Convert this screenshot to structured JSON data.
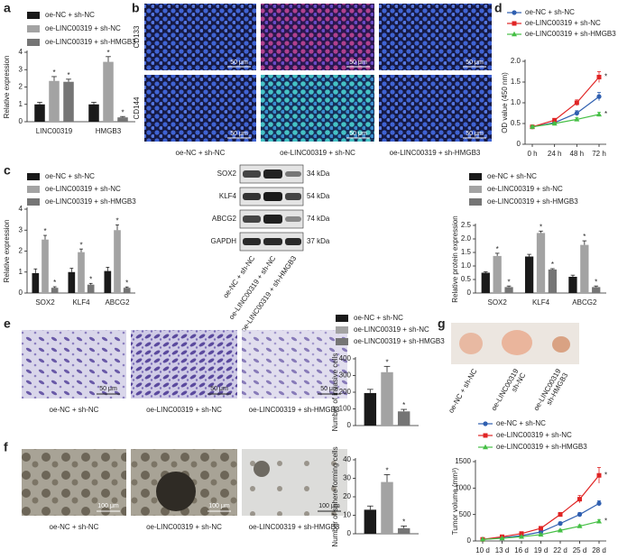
{
  "panel_labels": [
    "a",
    "b",
    "c",
    "d",
    "e",
    "f",
    "g"
  ],
  "chart_data": [
    {
      "type": "bar",
      "y_label": "Relative expression",
      "categories": [
        "LINC00319",
        "HMGB3"
      ],
      "ylim": [
        0,
        4
      ],
      "yticks": [
        0,
        1,
        2,
        3,
        4
      ],
      "series": [
        {
          "name": "oe-NC + sh-NC",
          "color": "#1a1a1a",
          "values": [
            1.0,
            1.0
          ],
          "errors": [
            0.12,
            0.12
          ]
        },
        {
          "name": "oe-LINC00319 + sh-NC",
          "color": "#a3a3a3",
          "values": [
            2.35,
            3.45
          ],
          "errors": [
            0.25,
            0.3
          ],
          "significance": "*"
        },
        {
          "name": "oe-LINC00319 + sh-HMGB3",
          "color": "#757575",
          "values": [
            2.3,
            0.25
          ],
          "errors": [
            0.15,
            0.05
          ],
          "significance": "*"
        }
      ]
    },
    {
      "type": "line",
      "y_label": "OD value (450 nm)",
      "categories": [
        "0 h",
        "24 h",
        "48 h",
        "72 h"
      ],
      "ylim": [
        0,
        2
      ],
      "yticks": [
        0,
        0.5,
        {
          "value": 1,
          "label": "1.0"
        },
        1.5,
        {
          "value": 2,
          "label": "2.0"
        }
      ],
      "series": [
        {
          "name": "oe-NC + sh-NC",
          "color": "#2f5fb0",
          "marker": "circle",
          "values": [
            0.42,
            0.52,
            0.75,
            1.15
          ],
          "errors": [
            0.03,
            0.03,
            0.06,
            0.1
          ]
        },
        {
          "name": "oe-LINC00319 + sh-NC",
          "color": "#e02424",
          "marker": "square",
          "values": [
            0.42,
            0.58,
            1.0,
            1.62
          ],
          "errors": [
            0.03,
            0.03,
            0.07,
            0.13
          ],
          "significance": "*"
        },
        {
          "name": "oe-LINC00319 + sh-HMGB3",
          "color": "#45bf45",
          "marker": "triangle",
          "values": [
            0.42,
            0.5,
            0.6,
            0.72
          ],
          "errors": [
            0.03,
            0.03,
            0.04,
            0.05
          ],
          "significance": "*"
        }
      ]
    },
    {
      "type": "bar",
      "y_label": "Relative expression",
      "categories": [
        "SOX2",
        "KLF4",
        "ABCG2"
      ],
      "ylim": [
        0,
        4
      ],
      "yticks": [
        0,
        1,
        2,
        3,
        4
      ],
      "series": [
        {
          "name": "oe-NC + sh-NC",
          "color": "#1a1a1a",
          "values": [
            0.95,
            1.0,
            1.05
          ],
          "errors": [
            0.2,
            0.18,
            0.18
          ]
        },
        {
          "name": "oe-LINC00319 + sh-NC",
          "color": "#a3a3a3",
          "values": [
            2.55,
            1.95,
            3.0
          ],
          "errors": [
            0.2,
            0.15,
            0.25
          ],
          "significance": "*"
        },
        {
          "name": "oe-LINC00319 + sh-HMGB3",
          "color": "#757575",
          "values": [
            0.25,
            0.4,
            0.25
          ],
          "errors": [
            0.05,
            0.06,
            0.04
          ],
          "significance": "*"
        }
      ]
    },
    {
      "type": "bar",
      "y_label": "Relative protein expression",
      "categories": [
        "SOX2",
        "KLF4",
        "ABCG2"
      ],
      "ylim": [
        0,
        2.5
      ],
      "yticks": [
        0,
        0.5,
        {
          "value": 1,
          "label": "1.0"
        },
        1.5,
        {
          "value": 2,
          "label": "2.0"
        },
        2.5
      ],
      "series": [
        {
          "name": "oe-NC + sh-NC",
          "color": "#1a1a1a",
          "values": [
            0.75,
            1.35,
            0.6
          ],
          "errors": [
            0.04,
            0.08,
            0.06
          ]
        },
        {
          "name": "oe-LINC00319 + sh-NC",
          "color": "#a3a3a3",
          "values": [
            1.37,
            2.22,
            1.78
          ],
          "errors": [
            0.1,
            0.07,
            0.15
          ],
          "significance": "*"
        },
        {
          "name": "oe-LINC00319 + sh-HMGB3",
          "color": "#757575",
          "values": [
            0.22,
            0.87,
            0.22
          ],
          "errors": [
            0.04,
            0.03,
            0.04
          ],
          "significance": "*"
        }
      ]
    },
    {
      "type": "bar",
      "y_label": "Number of invasive cells",
      "ylim": [
        0,
        400
      ],
      "yticks": [
        0,
        100,
        200,
        300,
        400
      ],
      "series": [
        {
          "name": "oe-NC + sh-NC",
          "color": "#1a1a1a",
          "values": [
            195
          ],
          "errors": [
            22
          ]
        },
        {
          "name": "oe-LINC00319 + sh-NC",
          "color": "#a3a3a3",
          "values": [
            320
          ],
          "errors": [
            35
          ],
          "significance": "*"
        },
        {
          "name": "oe-LINC00319 + sh-HMGB3",
          "color": "#757575",
          "values": [
            85
          ],
          "errors": [
            12
          ],
          "significance": "*"
        }
      ]
    },
    {
      "type": "bar",
      "y_label": "Number of sphere forming cells",
      "ylim": [
        0,
        40
      ],
      "yticks": [
        0,
        10,
        20,
        30,
        40
      ],
      "series": [
        {
          "color": "#1a1a1a",
          "values": [
            13
          ],
          "errors": [
            2
          ]
        },
        {
          "color": "#a3a3a3",
          "values": [
            28
          ],
          "errors": [
            4
          ],
          "significance": "*"
        },
        {
          "color": "#757575",
          "values": [
            3
          ],
          "errors": [
            1.2
          ],
          "significance": "*"
        }
      ]
    },
    {
      "type": "line",
      "y_label": "Tumor volume (mm³)",
      "categories": [
        "10 d",
        "13 d",
        "16 d",
        "19 d",
        "22 d",
        "25 d",
        "28 d"
      ],
      "ylim": [
        0,
        1500
      ],
      "yticks": [
        0,
        500,
        1000,
        1500
      ],
      "series": [
        {
          "name": "oe-NC + sh-NC",
          "color": "#2f5fb0",
          "marker": "circle",
          "values": [
            30,
            60,
            100,
            170,
            330,
            500,
            710
          ],
          "errors": [
            5,
            8,
            12,
            20,
            30,
            40,
            50
          ]
        },
        {
          "name": "oe-LINC00319 + sh-NC",
          "color": "#e02424",
          "marker": "square",
          "values": [
            30,
            80,
            140,
            240,
            500,
            790,
            1240
          ],
          "errors": [
            5,
            10,
            15,
            25,
            40,
            70,
            150
          ],
          "significance": "*"
        },
        {
          "name": "oe-LINC00319 + sh-HMGB3",
          "color": "#45bf45",
          "marker": "triangle",
          "values": [
            30,
            50,
            80,
            120,
            200,
            280,
            370
          ],
          "errors": [
            5,
            6,
            8,
            12,
            18,
            25,
            35
          ],
          "significance": "*"
        }
      ]
    }
  ],
  "fluorescence": {
    "rows": [
      "CD133",
      "CD144"
    ],
    "columns": [
      "oe-NC + sh-NC",
      "oe-LINC00319 + sh-NC",
      "oe-LINC00319 + sh-HMGB3"
    ],
    "scale_bar": "50 μm"
  },
  "blot": {
    "proteins": [
      "SOX2",
      "KLF4",
      "ABCG2",
      "GAPDH"
    ],
    "sizes": [
      "34 kDa",
      "54 kDa",
      "74 kDa",
      "37 kDa"
    ],
    "lanes": [
      "oe-NC + sh-NC",
      "oe-LINC00319 + sh-NC",
      "oe-LINC00319 + sh-HMGB3"
    ]
  },
  "invasion": {
    "columns": [
      "oe-NC + sh-NC",
      "oe-LINC00319 + sh-NC",
      "oe-LINC00319 + sh-HMGB3"
    ],
    "scale_bar": "50 μm"
  },
  "sphere": {
    "columns": [
      "oe-NC + sh-NC",
      "oe-LINC00319 + sh-NC",
      "oe-LINC00319 + sh-HMGB3"
    ],
    "scale_bar": "100 μm"
  },
  "tumor_photo": {
    "labels": [
      [
        "oe-NC + sh-NC"
      ],
      [
        "oe-LINC00319",
        "sh-NC"
      ],
      [
        "oe-LINC00319",
        "sh-HMGB3"
      ]
    ]
  }
}
